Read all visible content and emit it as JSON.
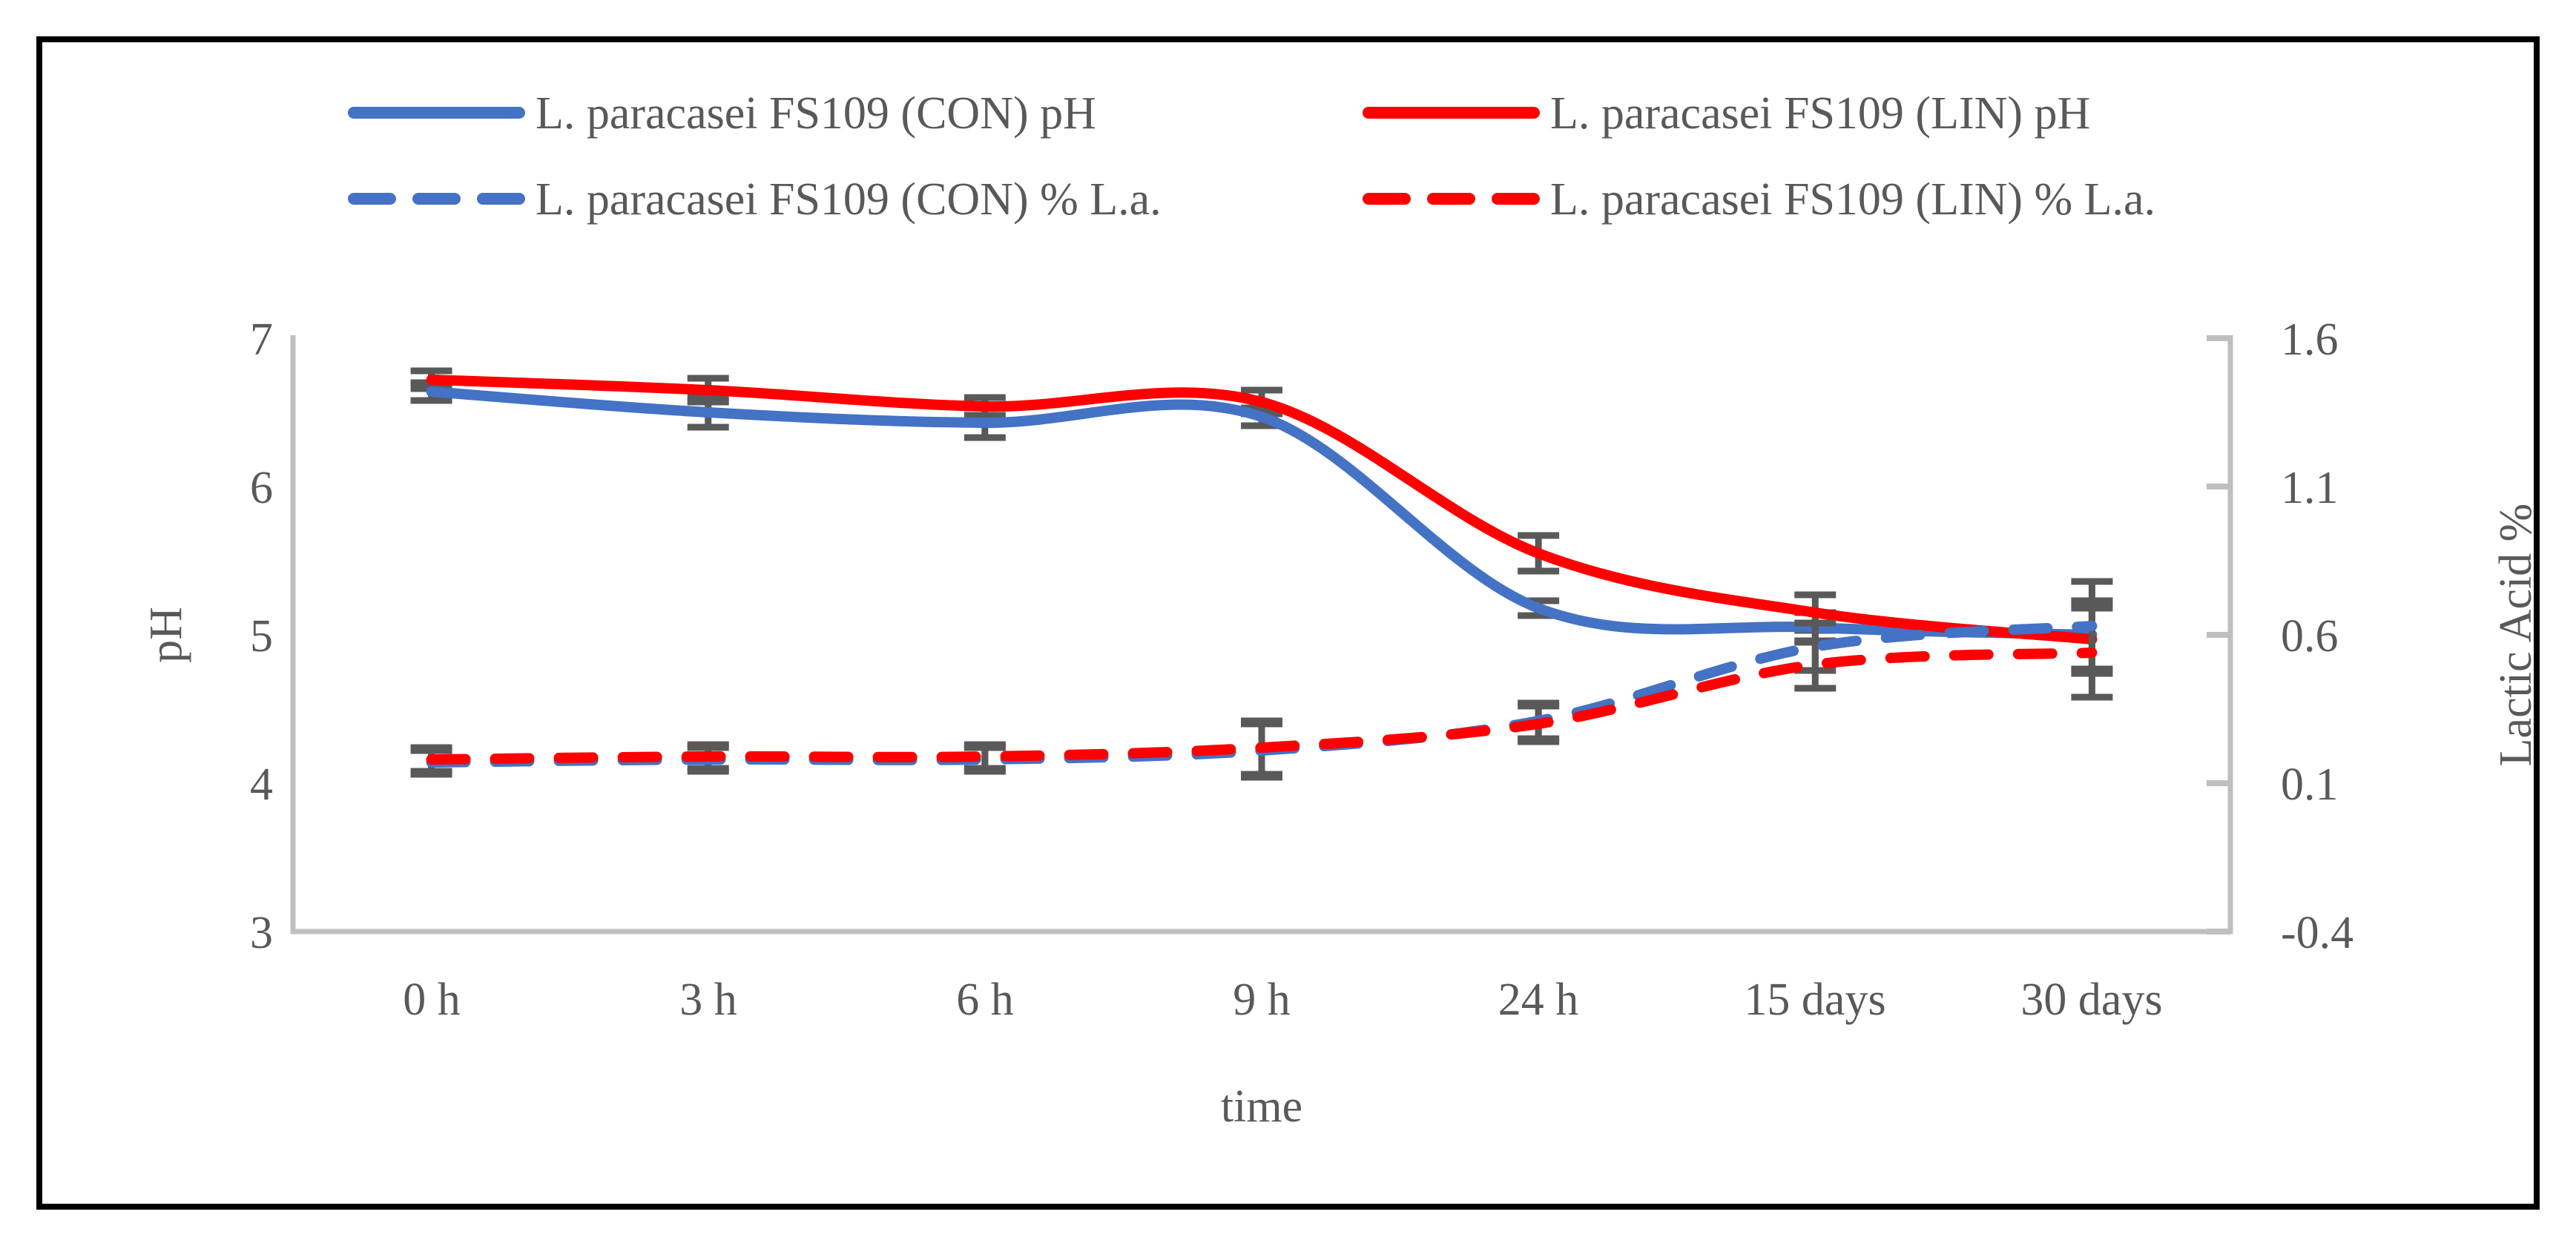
{
  "chart_data": {
    "type": "line",
    "title": "",
    "x_categories": [
      "0 h",
      "3 h",
      "6 h",
      "9 h",
      "24 h",
      "15 days",
      "30 days"
    ],
    "x_axis": {
      "title": "time",
      "tick_labels": [
        "0 h",
        "3 h",
        "6 h",
        "9 h",
        "24 h",
        "15 days",
        "30 days"
      ]
    },
    "left_axis": {
      "label": "pH",
      "min": 3,
      "max": 7,
      "ticks": [
        7,
        6,
        5,
        4,
        3
      ],
      "tick_labels": [
        "7",
        "6",
        "5",
        "4",
        "3"
      ]
    },
    "right_axis": {
      "label": "Lactic Acid %",
      "min": -0.4,
      "max": 1.6,
      "ticks": [
        1.6,
        1.1,
        0.6,
        0.1,
        -0.4
      ],
      "tick_labels": [
        "1.6",
        "1.1",
        "0.6",
        "0.1",
        "-0.4"
      ]
    },
    "grid": "off",
    "legend_position": "top",
    "series": [
      {
        "name": "L. paracasei FS109 (CON) pH",
        "axis": "left",
        "style": "solid",
        "color": "#4472C4",
        "values": [
          6.64,
          6.5,
          6.43,
          6.47,
          5.18,
          5.05,
          5.0
        ],
        "errors": [
          0.06,
          0.1,
          0.1,
          0.06,
          0.05,
          0.1,
          0.23
        ]
      },
      {
        "name": "L. paracasei FS109 (LIN) pH",
        "axis": "left",
        "style": "solid",
        "color": "#FF0000",
        "values": [
          6.72,
          6.65,
          6.54,
          6.57,
          5.55,
          5.15,
          4.97
        ],
        "errors": [
          0.06,
          0.08,
          0.06,
          0.08,
          0.12,
          0.12,
          0.23
        ]
      },
      {
        "name": "L. paracasei FS109 (CON) % L.a.",
        "axis": "right",
        "style": "dashed",
        "color": "#4472C4",
        "values": [
          0.17,
          0.18,
          0.18,
          0.21,
          0.31,
          0.56,
          0.63
        ],
        "errors": [
          0.04,
          0.04,
          0.04,
          0.09,
          0.06,
          0.08,
          0.15
        ]
      },
      {
        "name": "L. paracasei FS109 (LIN) % L.a.",
        "axis": "right",
        "style": "dashed",
        "color": "#FF0000",
        "values": [
          0.18,
          0.19,
          0.19,
          0.22,
          0.3,
          0.5,
          0.54
        ],
        "errors": [
          0.04,
          0.04,
          0.04,
          0.09,
          0.06,
          0.08,
          0.15
        ]
      }
    ],
    "colors": {
      "text": "#595959",
      "axis_line": "#BFBFBF",
      "error_bar": "#595959",
      "frame": "#000000",
      "background": "#FFFFFF"
    }
  }
}
